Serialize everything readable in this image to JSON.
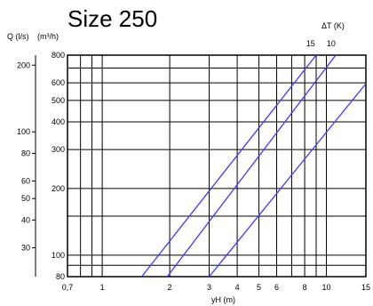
{
  "chart_data": {
    "type": "line",
    "title": "Size 250",
    "xlabel": "yH (m)",
    "ylabel_left": "Q (l/s)",
    "ylabel_right": "(m³/h)",
    "legend_title": "ΔT (K)",
    "x_scale": "log",
    "y_scale": "log",
    "xlim": [
      0.7,
      15
    ],
    "ylim_m3h": [
      80,
      800
    ],
    "ylim_ls": [
      22.2,
      222.2
    ],
    "grid": true,
    "x_ticks": [
      {
        "v": 0.7,
        "label": "0,7"
      },
      {
        "v": 1,
        "label": "1"
      },
      {
        "v": 2,
        "label": "2"
      },
      {
        "v": 3,
        "label": "3"
      },
      {
        "v": 4,
        "label": "4"
      },
      {
        "v": 5,
        "label": "5"
      },
      {
        "v": 6,
        "label": "6"
      },
      {
        "v": 8,
        "label": "8"
      },
      {
        "v": 10,
        "label": "10"
      },
      {
        "v": 15,
        "label": "15"
      }
    ],
    "x_grid": [
      0.7,
      0.8,
      0.9,
      1,
      2,
      3,
      4,
      5,
      6,
      7,
      8,
      9,
      10,
      15
    ],
    "y_ticks_m3h": [
      {
        "v": 80,
        "label": "80"
      },
      {
        "v": 100,
        "label": "100"
      },
      {
        "v": 200,
        "label": "200"
      },
      {
        "v": 300,
        "label": "300"
      },
      {
        "v": 400,
        "label": "400"
      },
      {
        "v": 500,
        "label": "500"
      },
      {
        "v": 600,
        "label": "600"
      },
      {
        "v": 800,
        "label": "800"
      }
    ],
    "y_grid_m3h": [
      80,
      90,
      100,
      150,
      200,
      300,
      400,
      500,
      600,
      700,
      800
    ],
    "y_ticks_ls": [
      {
        "v": 30,
        "label": "30"
      },
      {
        "v": 40,
        "label": "40"
      },
      {
        "v": 50,
        "label": "50"
      },
      {
        "v": 60,
        "label": "60"
      },
      {
        "v": 80,
        "label": "80"
      },
      {
        "v": 100,
        "label": "100"
      },
      {
        "v": 200,
        "label": "200"
      }
    ],
    "series": [
      {
        "name": "15",
        "label_x": 8.5,
        "points": [
          [
            1.5,
            80
          ],
          [
            9.0,
            800
          ]
        ]
      },
      {
        "name": "10",
        "label_x": 10.5,
        "points": [
          [
            1.95,
            80
          ],
          [
            11.0,
            800
          ]
        ]
      },
      {
        "name": "",
        "points": [
          [
            3.0,
            80
          ],
          [
            16.0,
            645
          ]
        ]
      }
    ],
    "line_color": "#3b3bff"
  }
}
